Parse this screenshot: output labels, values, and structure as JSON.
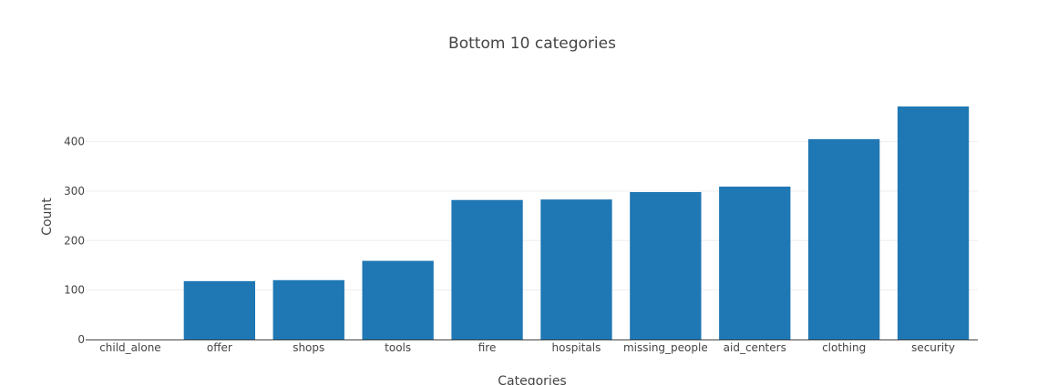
{
  "chart_data": {
    "type": "bar",
    "title": "Bottom 10 categories",
    "xlabel": "Categories",
    "ylabel": "Count",
    "categories": [
      "child_alone",
      "offer",
      "shops",
      "tools",
      "fire",
      "hospitals",
      "missing_people",
      "aid_centers",
      "clothing",
      "security"
    ],
    "values": [
      0,
      118,
      120,
      159,
      282,
      283,
      298,
      309,
      405,
      471
    ],
    "ylim": [
      0,
      471
    ],
    "yticks": [
      0,
      100,
      200,
      300,
      400
    ],
    "grid": true,
    "legend": "none",
    "bar_color": "#1f77b4"
  }
}
